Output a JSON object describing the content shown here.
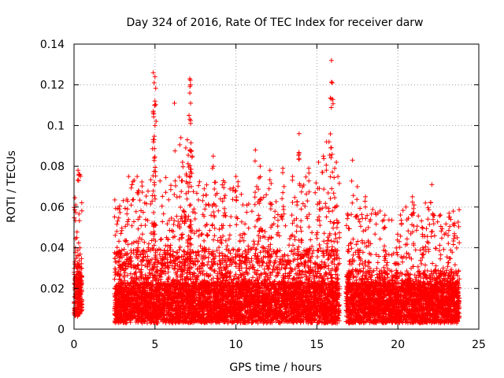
{
  "chart_data": {
    "type": "scatter",
    "title": "Day 324 of 2016, Rate Of TEC Index for receiver darw",
    "xlabel": "GPS time / hours",
    "ylabel": "ROTI / TECUs",
    "xlim": [
      0,
      25
    ],
    "ylim": [
      0,
      0.14
    ],
    "xticks": [
      0,
      5,
      10,
      15,
      20,
      25
    ],
    "yticks": [
      0,
      0.02,
      0.04,
      0.06,
      0.08,
      0.1,
      0.12,
      0.14
    ],
    "grid": true,
    "legend": "none",
    "marker": "+",
    "color": "#ff0000",
    "segments": [
      {
        "x_start": 0.0,
        "x_end": 0.5,
        "y_min": 0.006,
        "typical_max": 0.045
      },
      {
        "x_start": 2.5,
        "x_end": 16.4,
        "y_min": 0.003,
        "typical_max": 0.055
      },
      {
        "x_start": 16.8,
        "x_end": 23.8,
        "y_min": 0.003,
        "typical_max": 0.04
      }
    ],
    "peaks": [
      {
        "x": 0.25,
        "y": 0.078
      },
      {
        "x": 0.35,
        "y": 0.076
      },
      {
        "x": 0.1,
        "y": 0.061
      },
      {
        "x": 3.3,
        "y": 0.059
      },
      {
        "x": 3.9,
        "y": 0.075
      },
      {
        "x": 4.0,
        "y": 0.068
      },
      {
        "x": 4.9,
        "y": 0.126
      },
      {
        "x": 5.0,
        "y": 0.124
      },
      {
        "x": 4.95,
        "y": 0.121
      },
      {
        "x": 5.0,
        "y": 0.112
      },
      {
        "x": 4.9,
        "y": 0.107
      },
      {
        "x": 5.0,
        "y": 0.1
      },
      {
        "x": 4.95,
        "y": 0.084
      },
      {
        "x": 6.2,
        "y": 0.111
      },
      {
        "x": 6.6,
        "y": 0.094
      },
      {
        "x": 6.9,
        "y": 0.089
      },
      {
        "x": 7.15,
        "y": 0.123
      },
      {
        "x": 7.2,
        "y": 0.12
      },
      {
        "x": 7.15,
        "y": 0.116
      },
      {
        "x": 7.2,
        "y": 0.111
      },
      {
        "x": 7.1,
        "y": 0.105
      },
      {
        "x": 7.2,
        "y": 0.101
      },
      {
        "x": 7.0,
        "y": 0.093
      },
      {
        "x": 7.3,
        "y": 0.085
      },
      {
        "x": 6.7,
        "y": 0.082
      },
      {
        "x": 8.6,
        "y": 0.085
      },
      {
        "x": 8.6,
        "y": 0.08
      },
      {
        "x": 9.3,
        "y": 0.072
      },
      {
        "x": 10.0,
        "y": 0.075
      },
      {
        "x": 11.2,
        "y": 0.088
      },
      {
        "x": 11.5,
        "y": 0.08
      },
      {
        "x": 12.1,
        "y": 0.078
      },
      {
        "x": 12.9,
        "y": 0.079
      },
      {
        "x": 13.5,
        "y": 0.075
      },
      {
        "x": 13.9,
        "y": 0.096
      },
      {
        "x": 14.5,
        "y": 0.079
      },
      {
        "x": 15.1,
        "y": 0.082
      },
      {
        "x": 15.4,
        "y": 0.085
      },
      {
        "x": 15.6,
        "y": 0.092
      },
      {
        "x": 15.75,
        "y": 0.092
      },
      {
        "x": 15.9,
        "y": 0.132
      },
      {
        "x": 15.95,
        "y": 0.121
      },
      {
        "x": 15.9,
        "y": 0.113
      },
      {
        "x": 16.1,
        "y": 0.079
      },
      {
        "x": 16.2,
        "y": 0.082
      },
      {
        "x": 16.3,
        "y": 0.075
      },
      {
        "x": 17.2,
        "y": 0.083
      },
      {
        "x": 17.5,
        "y": 0.07
      },
      {
        "x": 18.0,
        "y": 0.065
      },
      {
        "x": 19.2,
        "y": 0.056
      },
      {
        "x": 20.5,
        "y": 0.06
      },
      {
        "x": 20.9,
        "y": 0.065
      },
      {
        "x": 21.0,
        "y": 0.061
      },
      {
        "x": 21.5,
        "y": 0.05
      },
      {
        "x": 21.7,
        "y": 0.062
      },
      {
        "x": 22.1,
        "y": 0.071
      },
      {
        "x": 22.2,
        "y": 0.056
      },
      {
        "x": 23.2,
        "y": 0.055
      },
      {
        "x": 23.5,
        "y": 0.052
      }
    ]
  }
}
